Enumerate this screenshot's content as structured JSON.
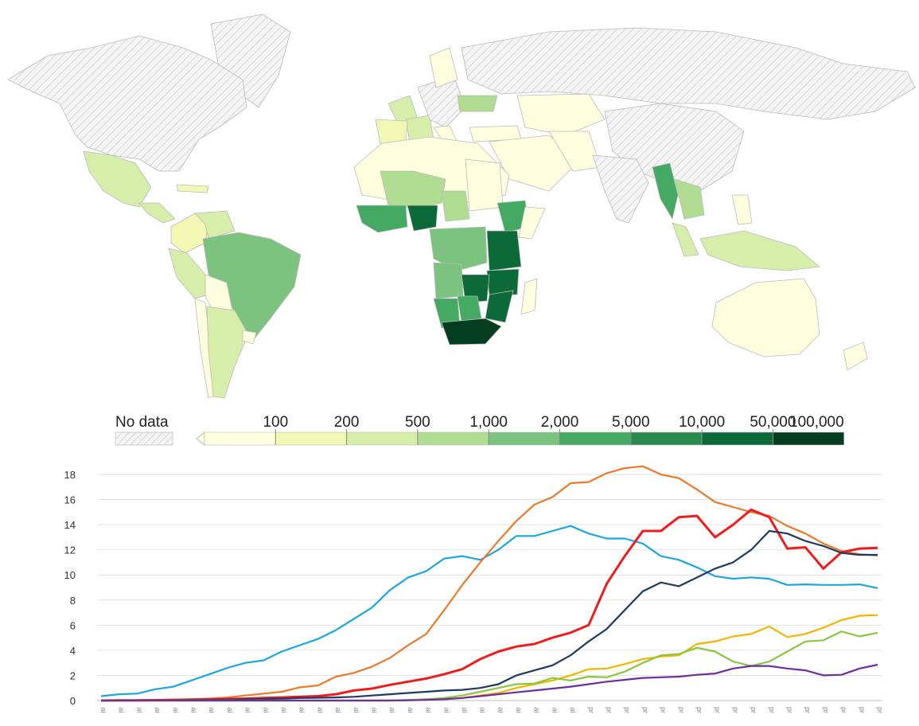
{
  "map": {
    "legend": {
      "no_data_label": "No data",
      "thresholds": [
        "100",
        "200",
        "500",
        "1,000",
        "2,000",
        "5,000",
        "10,000",
        "50,000",
        "100,000"
      ],
      "colors": [
        "#ffffe0",
        "#f3f7b4",
        "#d7edaa",
        "#b0dd92",
        "#7cc37f",
        "#44a963",
        "#288a4c",
        "#0c6a38",
        "#053d21"
      ],
      "no_data_color": "#e8e8e8"
    }
  },
  "chart_data": {
    "type": "line",
    "ylim": [
      0,
      18
    ],
    "yticks": [
      0,
      2,
      4,
      6,
      8,
      10,
      12,
      14,
      16,
      18
    ],
    "grid": true,
    "x_tick_labels": [
      "ai",
      "ai",
      "ai",
      "ai",
      "ai",
      "ai",
      "ai",
      "ai",
      "ai",
      "ai",
      "ai",
      "ai",
      "ai",
      "ai",
      "ai",
      "ai",
      "ai",
      "ai",
      "ai",
      "ai",
      "ai",
      "ai",
      "ai",
      "ai",
      "ai",
      "ai",
      "ai",
      "pr",
      "pr",
      "pr",
      "pr",
      "pr",
      "pr",
      "pr",
      "pr",
      "pr",
      "pr",
      "pr",
      "pr",
      "pr",
      "pr",
      "pr",
      "pr",
      "pr"
    ],
    "series": [
      {
        "color": "#1aa7e0",
        "values": [
          0.35,
          0.5,
          0.55,
          0.9,
          1.1,
          1.6,
          2.1,
          2.6,
          3.0,
          3.2,
          3.9,
          4.4,
          4.9,
          5.6,
          6.5,
          7.4,
          8.8,
          9.8,
          10.3,
          11.3,
          11.5,
          11.2,
          12.0,
          13.1,
          13.1,
          13.5,
          13.9,
          13.3,
          12.9,
          12.9,
          12.5,
          11.5,
          11.2,
          10.6,
          9.9,
          9.7,
          9.8,
          9.7,
          9.2,
          9.25,
          9.2,
          9.2,
          9.25,
          8.95
        ]
      },
      {
        "color": "#ec7a2a",
        "values": [
          0.0,
          0.02,
          0.03,
          0.05,
          0.08,
          0.1,
          0.15,
          0.25,
          0.4,
          0.55,
          0.7,
          1.05,
          1.2,
          1.9,
          2.2,
          2.7,
          3.4,
          4.4,
          5.3,
          7.2,
          9.2,
          11.0,
          12.7,
          14.3,
          15.6,
          16.2,
          17.3,
          17.4,
          18.1,
          18.5,
          18.65,
          18.0,
          17.7,
          16.8,
          15.8,
          15.4,
          15.0,
          14.7,
          13.9,
          13.3,
          12.5,
          11.9,
          11.65,
          11.55
        ]
      },
      {
        "color": "#ee1c1c",
        "values": [
          0.0,
          0.01,
          0.02,
          0.03,
          0.05,
          0.07,
          0.1,
          0.12,
          0.15,
          0.2,
          0.25,
          0.3,
          0.35,
          0.5,
          0.8,
          0.95,
          1.25,
          1.5,
          1.75,
          2.1,
          2.5,
          3.3,
          3.9,
          4.3,
          4.5,
          5.0,
          5.4,
          6.0,
          9.3,
          11.5,
          13.5,
          13.5,
          14.6,
          14.7,
          13.0,
          14.0,
          15.2,
          14.6,
          12.1,
          12.2,
          10.5,
          11.8,
          12.1,
          12.15
        ]
      },
      {
        "color": "#1f3a5f",
        "values": [
          0.0,
          0.0,
          0.0,
          0.01,
          0.02,
          0.03,
          0.05,
          0.07,
          0.1,
          0.12,
          0.15,
          0.2,
          0.22,
          0.25,
          0.3,
          0.4,
          0.5,
          0.6,
          0.7,
          0.8,
          0.85,
          1.0,
          1.3,
          2.0,
          2.4,
          2.8,
          3.6,
          4.7,
          5.7,
          7.2,
          8.7,
          9.4,
          9.1,
          9.8,
          10.5,
          11.0,
          12.0,
          13.5,
          13.3,
          12.7,
          12.3,
          11.75,
          11.6,
          11.6
        ]
      },
      {
        "color": "#f2b600",
        "values": [
          0,
          0,
          0,
          0,
          0,
          0,
          0,
          0,
          0,
          0,
          0,
          0,
          0,
          0,
          0,
          0,
          0,
          0.02,
          0.05,
          0.1,
          0.2,
          0.4,
          0.6,
          1.0,
          1.3,
          1.6,
          2.0,
          2.5,
          2.55,
          2.9,
          3.3,
          3.5,
          3.6,
          4.5,
          4.7,
          5.1,
          5.3,
          5.9,
          5.05,
          5.3,
          5.8,
          6.4,
          6.75,
          6.8
        ]
      },
      {
        "color": "#8cc63f",
        "values": [
          0,
          0,
          0,
          0,
          0,
          0,
          0,
          0,
          0,
          0,
          0,
          0,
          0,
          0,
          0,
          0,
          0,
          0.05,
          0.1,
          0.2,
          0.4,
          0.7,
          1.0,
          1.3,
          1.35,
          1.8,
          1.6,
          1.9,
          1.85,
          2.3,
          3.0,
          3.6,
          3.7,
          4.2,
          3.9,
          3.1,
          2.75,
          3.1,
          3.9,
          4.7,
          4.8,
          5.5,
          5.1,
          5.4
        ]
      },
      {
        "color": "#6c2e9e",
        "values": [
          0,
          0,
          0,
          0,
          0,
          0,
          0,
          0,
          0,
          0,
          0,
          0,
          0,
          0,
          0,
          0,
          0,
          0.02,
          0.05,
          0.1,
          0.2,
          0.35,
          0.5,
          0.65,
          0.8,
          0.95,
          1.1,
          1.3,
          1.5,
          1.65,
          1.8,
          1.85,
          1.9,
          2.05,
          2.15,
          2.55,
          2.75,
          2.75,
          2.55,
          2.4,
          2.0,
          2.05,
          2.55,
          2.85
        ]
      }
    ]
  }
}
